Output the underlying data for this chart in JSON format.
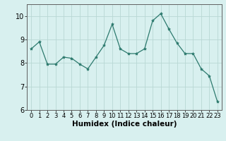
{
  "x": [
    0,
    1,
    2,
    3,
    4,
    5,
    6,
    7,
    8,
    9,
    10,
    11,
    12,
    13,
    14,
    15,
    16,
    17,
    18,
    19,
    20,
    21,
    22,
    23
  ],
  "y": [
    8.6,
    8.9,
    7.95,
    7.95,
    8.25,
    8.2,
    7.95,
    7.75,
    8.25,
    8.75,
    9.65,
    8.6,
    8.4,
    8.4,
    8.6,
    9.8,
    10.1,
    9.45,
    8.85,
    8.4,
    8.4,
    7.75,
    7.45,
    6.35
  ],
  "line_color": "#2d7a6e",
  "marker": "*",
  "marker_size": 3,
  "bg_color": "#d8f0ef",
  "grid_color": "#b8d8d4",
  "xlabel": "Humidex (Indice chaleur)",
  "xlim": [
    -0.5,
    23.5
  ],
  "ylim": [
    6,
    10.5
  ],
  "yticks": [
    6,
    7,
    8,
    9,
    10
  ],
  "xticks": [
    0,
    1,
    2,
    3,
    4,
    5,
    6,
    7,
    8,
    9,
    10,
    11,
    12,
    13,
    14,
    15,
    16,
    17,
    18,
    19,
    20,
    21,
    22,
    23
  ],
  "tick_fontsize": 6,
  "label_fontsize": 7.5
}
